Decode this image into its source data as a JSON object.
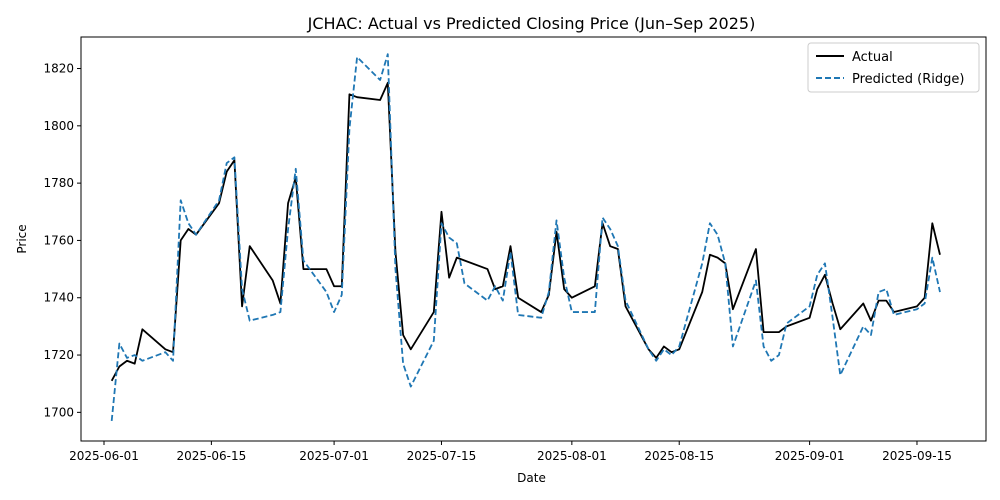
{
  "chart_data": {
    "type": "line",
    "title": "JCHAC: Actual vs Predicted Closing Price (Jun–Sep 2025)",
    "xlabel": "Date",
    "ylabel": "Price",
    "xlim": [
      "2025-05-29",
      "2025-09-24"
    ],
    "ylim": [
      1690,
      1831
    ],
    "x_ticks": [
      "2025-06-01",
      "2025-06-15",
      "2025-07-01",
      "2025-07-15",
      "2025-08-01",
      "2025-08-15",
      "2025-09-01",
      "2025-09-15"
    ],
    "y_ticks": [
      1700,
      1720,
      1740,
      1760,
      1780,
      1800,
      1820
    ],
    "grid": false,
    "legend_position": "top-right",
    "series": [
      {
        "name": "Actual",
        "color": "#000000",
        "style": "solid",
        "points": [
          [
            "2025-06-02",
            1711
          ],
          [
            "2025-06-03",
            1716
          ],
          [
            "2025-06-04",
            1718
          ],
          [
            "2025-06-05",
            1717
          ],
          [
            "2025-06-06",
            1729
          ],
          [
            "2025-06-09",
            1722
          ],
          [
            "2025-06-10",
            1721
          ],
          [
            "2025-06-11",
            1760
          ],
          [
            "2025-06-12",
            1764
          ],
          [
            "2025-06-13",
            1762
          ],
          [
            "2025-06-16",
            1773
          ],
          [
            "2025-06-17",
            1784
          ],
          [
            "2025-06-18",
            1788
          ],
          [
            "2025-06-19",
            1737
          ],
          [
            "2025-06-20",
            1758
          ],
          [
            "2025-06-23",
            1746
          ],
          [
            "2025-06-24",
            1738
          ],
          [
            "2025-06-25",
            1773
          ],
          [
            "2025-06-26",
            1782
          ],
          [
            "2025-06-27",
            1750
          ],
          [
            "2025-06-30",
            1750
          ],
          [
            "2025-07-01",
            1744
          ],
          [
            "2025-07-02",
            1744
          ],
          [
            "2025-07-03",
            1811
          ],
          [
            "2025-07-04",
            1810
          ],
          [
            "2025-07-07",
            1809
          ],
          [
            "2025-07-08",
            1815
          ],
          [
            "2025-07-09",
            1756
          ],
          [
            "2025-07-10",
            1727
          ],
          [
            "2025-07-11",
            1722
          ],
          [
            "2025-07-14",
            1735
          ],
          [
            "2025-07-15",
            1770
          ],
          [
            "2025-07-16",
            1747
          ],
          [
            "2025-07-17",
            1754
          ],
          [
            "2025-07-18",
            1753
          ],
          [
            "2025-07-21",
            1750
          ],
          [
            "2025-07-22",
            1743
          ],
          [
            "2025-07-23",
            1744
          ],
          [
            "2025-07-24",
            1758
          ],
          [
            "2025-07-25",
            1740
          ],
          [
            "2025-07-28",
            1735
          ],
          [
            "2025-07-29",
            1741
          ],
          [
            "2025-07-30",
            1763
          ],
          [
            "2025-07-31",
            1743
          ],
          [
            "2025-08-01",
            1740
          ],
          [
            "2025-08-04",
            1744
          ],
          [
            "2025-08-05",
            1766
          ],
          [
            "2025-08-06",
            1758
          ],
          [
            "2025-08-07",
            1757
          ],
          [
            "2025-08-08",
            1737
          ],
          [
            "2025-08-11",
            1722
          ],
          [
            "2025-08-12",
            1719
          ],
          [
            "2025-08-13",
            1723
          ],
          [
            "2025-08-14",
            1721
          ],
          [
            "2025-08-15",
            1722
          ],
          [
            "2025-08-18",
            1742
          ],
          [
            "2025-08-19",
            1755
          ],
          [
            "2025-08-20",
            1754
          ],
          [
            "2025-08-21",
            1752
          ],
          [
            "2025-08-22",
            1736
          ],
          [
            "2025-08-25",
            1757
          ],
          [
            "2025-08-26",
            1728
          ],
          [
            "2025-08-27",
            1728
          ],
          [
            "2025-08-28",
            1728
          ],
          [
            "2025-08-29",
            1730
          ],
          [
            "2025-09-01",
            1733
          ],
          [
            "2025-09-02",
            1743
          ],
          [
            "2025-09-03",
            1748
          ],
          [
            "2025-09-04",
            1738
          ],
          [
            "2025-09-05",
            1729
          ],
          [
            "2025-09-08",
            1738
          ],
          [
            "2025-09-09",
            1732
          ],
          [
            "2025-09-10",
            1739
          ],
          [
            "2025-09-11",
            1739
          ],
          [
            "2025-09-12",
            1735
          ],
          [
            "2025-09-15",
            1737
          ],
          [
            "2025-09-16",
            1740
          ],
          [
            "2025-09-17",
            1766
          ],
          [
            "2025-09-18",
            1755
          ]
        ]
      },
      {
        "name": "Predicted (Ridge)",
        "color": "#1f77b4",
        "style": "dashed",
        "points": [
          [
            "2025-06-02",
            1697
          ],
          [
            "2025-06-03",
            1724
          ],
          [
            "2025-06-04",
            1719
          ],
          [
            "2025-06-05",
            1720
          ],
          [
            "2025-06-06",
            1718
          ],
          [
            "2025-06-09",
            1721
          ],
          [
            "2025-06-10",
            1718
          ],
          [
            "2025-06-11",
            1774
          ],
          [
            "2025-06-12",
            1766
          ],
          [
            "2025-06-13",
            1762
          ],
          [
            "2025-06-16",
            1774
          ],
          [
            "2025-06-17",
            1787
          ],
          [
            "2025-06-18",
            1789
          ],
          [
            "2025-06-19",
            1743
          ],
          [
            "2025-06-20",
            1732
          ],
          [
            "2025-06-23",
            1734
          ],
          [
            "2025-06-24",
            1735
          ],
          [
            "2025-06-25",
            1764
          ],
          [
            "2025-06-26",
            1785
          ],
          [
            "2025-06-27",
            1753
          ],
          [
            "2025-06-30",
            1742
          ],
          [
            "2025-07-01",
            1735
          ],
          [
            "2025-07-02",
            1741
          ],
          [
            "2025-07-03",
            1799
          ],
          [
            "2025-07-04",
            1824
          ],
          [
            "2025-07-07",
            1816
          ],
          [
            "2025-07-08",
            1825
          ],
          [
            "2025-07-09",
            1750
          ],
          [
            "2025-07-10",
            1717
          ],
          [
            "2025-07-11",
            1709
          ],
          [
            "2025-07-14",
            1725
          ],
          [
            "2025-07-15",
            1766
          ],
          [
            "2025-07-16",
            1761
          ],
          [
            "2025-07-17",
            1759
          ],
          [
            "2025-07-18",
            1745
          ],
          [
            "2025-07-21",
            1739
          ],
          [
            "2025-07-22",
            1744
          ],
          [
            "2025-07-23",
            1739
          ],
          [
            "2025-07-24",
            1756
          ],
          [
            "2025-07-25",
            1734
          ],
          [
            "2025-07-28",
            1733
          ],
          [
            "2025-07-29",
            1742
          ],
          [
            "2025-07-30",
            1767
          ],
          [
            "2025-07-31",
            1747
          ],
          [
            "2025-08-01",
            1735
          ],
          [
            "2025-08-04",
            1735
          ],
          [
            "2025-08-05",
            1768
          ],
          [
            "2025-08-06",
            1764
          ],
          [
            "2025-08-07",
            1758
          ],
          [
            "2025-08-08",
            1739
          ],
          [
            "2025-08-11",
            1722
          ],
          [
            "2025-08-12",
            1718
          ],
          [
            "2025-08-13",
            1722
          ],
          [
            "2025-08-14",
            1720
          ],
          [
            "2025-08-15",
            1723
          ],
          [
            "2025-08-18",
            1752
          ],
          [
            "2025-08-19",
            1766
          ],
          [
            "2025-08-20",
            1762
          ],
          [
            "2025-08-21",
            1752
          ],
          [
            "2025-08-22",
            1723
          ],
          [
            "2025-08-25",
            1746
          ],
          [
            "2025-08-26",
            1723
          ],
          [
            "2025-08-27",
            1718
          ],
          [
            "2025-08-28",
            1720
          ],
          [
            "2025-08-29",
            1731
          ],
          [
            "2025-09-01",
            1737
          ],
          [
            "2025-09-02",
            1748
          ],
          [
            "2025-09-03",
            1752
          ],
          [
            "2025-09-04",
            1733
          ],
          [
            "2025-09-05",
            1713
          ],
          [
            "2025-09-08",
            1730
          ],
          [
            "2025-09-09",
            1727
          ],
          [
            "2025-09-10",
            1742
          ],
          [
            "2025-09-11",
            1743
          ],
          [
            "2025-09-12",
            1734
          ],
          [
            "2025-09-15",
            1736
          ],
          [
            "2025-09-16",
            1738
          ],
          [
            "2025-09-17",
            1754
          ],
          [
            "2025-09-18",
            1742
          ]
        ]
      }
    ]
  }
}
